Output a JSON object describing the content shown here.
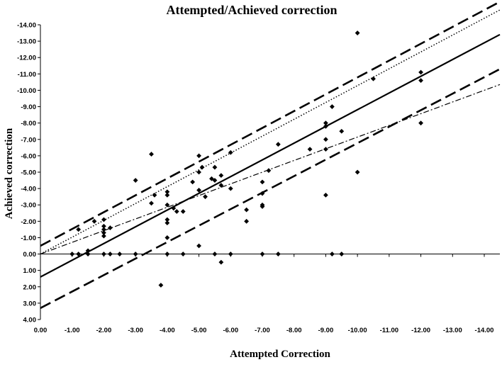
{
  "chart_data": {
    "type": "scatter",
    "title": "Attempted/Achieved correction",
    "xlabel": "Attempted Correction",
    "ylabel": "Achieved correction",
    "xlim": [
      0,
      -14
    ],
    "ylim": [
      4,
      -14
    ],
    "x_ticks": [
      0,
      -1,
      -2,
      -3,
      -4,
      -5,
      -6,
      -7,
      -8,
      -9,
      -10,
      -11,
      -12,
      -13,
      -14
    ],
    "x_tick_labels": [
      "0.00",
      "-1.00",
      "-2.00",
      "-3.00",
      "-4.00",
      "-5.00",
      "-6.00",
      "-7.00",
      "-8.00",
      "-9.00",
      "-10.00",
      "-11.00",
      "-12.00",
      "-13.00",
      "-14.00"
    ],
    "y_ticks": [
      -14,
      -13,
      -12,
      -11,
      -10,
      -9,
      -8,
      -7,
      -6,
      -5,
      -4,
      -3,
      -2,
      -1,
      0,
      1,
      2,
      3,
      4
    ],
    "y_tick_labels": [
      "-14.00",
      "-13.00",
      "-12.00",
      "-11.00",
      "-10.00",
      "-9.00",
      "-8.00",
      "-7.00",
      "-6.00",
      "-5.00",
      "-4.00",
      "-3.00",
      "-2.00",
      "-1.00",
      "0.00",
      "1.00",
      "2.00",
      "3.00",
      "4.00"
    ],
    "points": [
      [
        -1.0,
        0.0
      ],
      [
        -1.2,
        -1.5
      ],
      [
        -1.2,
        0.0
      ],
      [
        -1.5,
        -0.2
      ],
      [
        -1.5,
        0.0
      ],
      [
        -1.7,
        -2.0
      ],
      [
        -2.0,
        -2.1
      ],
      [
        -2.0,
        -1.7
      ],
      [
        -2.0,
        -1.5
      ],
      [
        -2.0,
        -1.3
      ],
      [
        -2.0,
        -1.1
      ],
      [
        -2.0,
        0.0
      ],
      [
        -2.2,
        -1.6
      ],
      [
        -2.2,
        0.0
      ],
      [
        -2.5,
        0.0
      ],
      [
        -3.0,
        -4.5
      ],
      [
        -3.0,
        0.0
      ],
      [
        -3.5,
        -6.1
      ],
      [
        -3.5,
        -3.1
      ],
      [
        -3.6,
        -3.6
      ],
      [
        -3.8,
        1.9
      ],
      [
        -4.0,
        -3.8
      ],
      [
        -4.0,
        -3.6
      ],
      [
        -4.0,
        -3.0
      ],
      [
        -4.0,
        -2.1
      ],
      [
        -4.0,
        -1.9
      ],
      [
        -4.0,
        -1.0
      ],
      [
        -4.0,
        0.0
      ],
      [
        -4.2,
        -2.8
      ],
      [
        -4.3,
        -2.6
      ],
      [
        -4.5,
        -2.6
      ],
      [
        -4.5,
        0.0
      ],
      [
        -4.8,
        -4.4
      ],
      [
        -5.0,
        -6.0
      ],
      [
        -5.0,
        -5.0
      ],
      [
        -5.0,
        -3.9
      ],
      [
        -5.0,
        -0.5
      ],
      [
        -5.1,
        -5.3
      ],
      [
        -5.2,
        -3.5
      ],
      [
        -5.4,
        -4.6
      ],
      [
        -5.5,
        -5.3
      ],
      [
        -5.5,
        -4.5
      ],
      [
        -5.5,
        0.0
      ],
      [
        -5.7,
        -4.8
      ],
      [
        -5.7,
        -4.2
      ],
      [
        -5.7,
        0.5
      ],
      [
        -6.0,
        -6.2
      ],
      [
        -6.0,
        -4.0
      ],
      [
        -6.0,
        0.0
      ],
      [
        -6.5,
        -2.7
      ],
      [
        -6.5,
        -2.0
      ],
      [
        -7.0,
        -4.4
      ],
      [
        -7.0,
        -3.7
      ],
      [
        -7.0,
        -3.0
      ],
      [
        -7.0,
        -2.9
      ],
      [
        -7.0,
        0.0
      ],
      [
        -7.2,
        -5.1
      ],
      [
        -7.5,
        -6.7
      ],
      [
        -7.5,
        0.0
      ],
      [
        -8.5,
        -6.4
      ],
      [
        -9.0,
        -8.0
      ],
      [
        -9.0,
        -7.8
      ],
      [
        -9.0,
        -7.0
      ],
      [
        -9.0,
        -6.4
      ],
      [
        -9.0,
        -3.6
      ],
      [
        -9.2,
        -9.0
      ],
      [
        -9.2,
        0.0
      ],
      [
        -9.5,
        -7.5
      ],
      [
        -9.5,
        0.0
      ],
      [
        -10.0,
        -13.5
      ],
      [
        -10.0,
        -5.0
      ],
      [
        -10.5,
        -10.7
      ],
      [
        -12.0,
        -11.1
      ],
      [
        -12.0,
        -10.6
      ],
      [
        -12.0,
        -8.0
      ]
    ],
    "lines": [
      {
        "style": "solid",
        "from": [
          0,
          1.4
        ],
        "to": [
          -14,
          -12.9
        ]
      },
      {
        "style": "dashed",
        "from": [
          0,
          -0.5
        ],
        "to": [
          -14,
          -14.9
        ]
      },
      {
        "style": "dashed",
        "from": [
          0,
          3.3
        ],
        "to": [
          -14,
          -10.8
        ]
      },
      {
        "style": "dotted",
        "from": [
          0,
          0.0
        ],
        "to": [
          -14,
          -14.4
        ]
      },
      {
        "style": "dashdot",
        "from": [
          0,
          0.0
        ],
        "to": [
          -14,
          -10.0
        ]
      }
    ],
    "grid": false,
    "legend": "none"
  }
}
